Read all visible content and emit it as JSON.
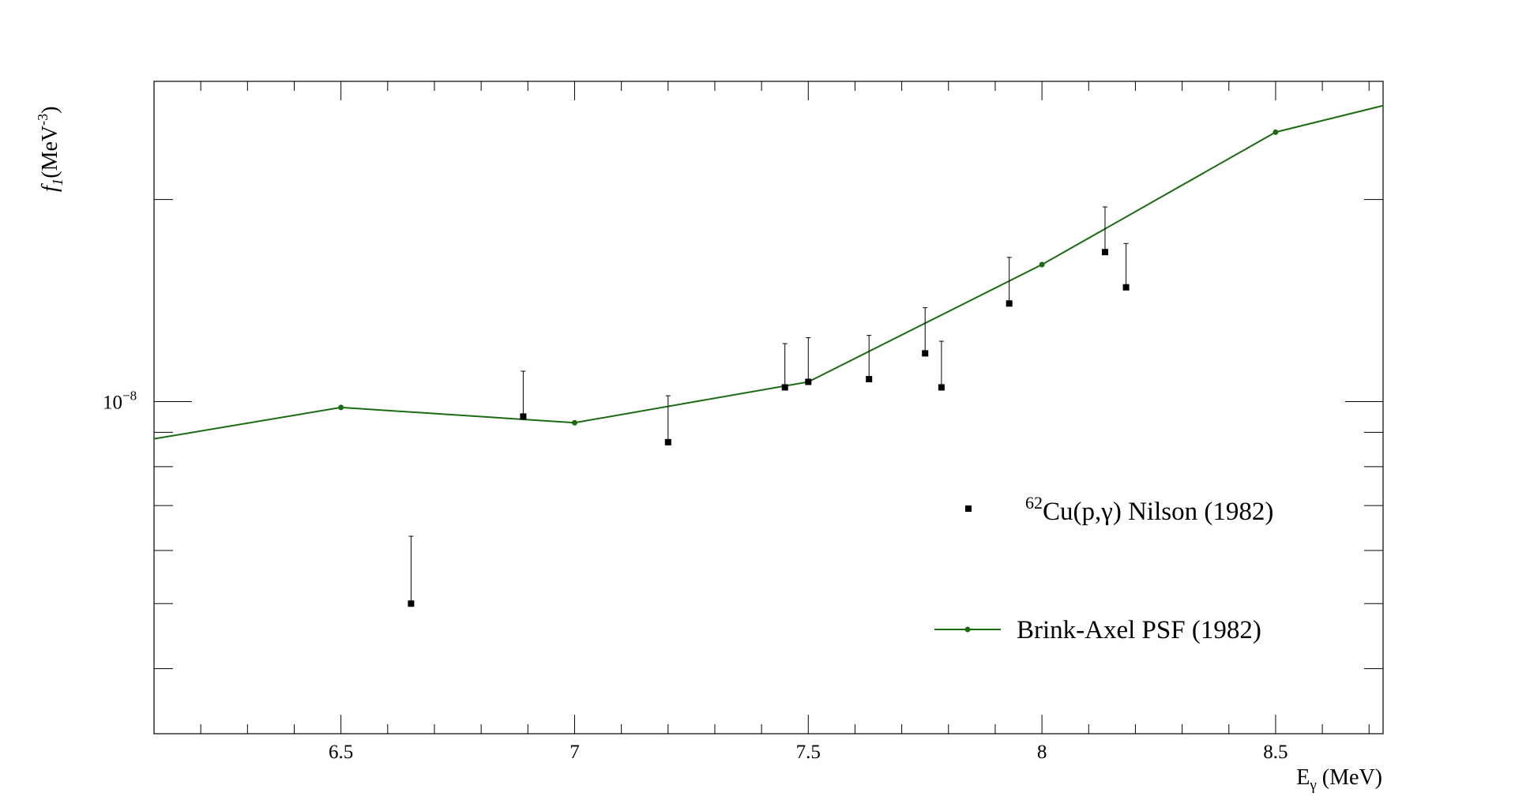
{
  "chart_data": {
    "type": "scatter",
    "x_scale": "linear",
    "y_scale": "log",
    "xlim": [
      6.1,
      8.73
    ],
    "ylim": [
      3.2e-09,
      3e-08
    ],
    "x_ticks": [
      6.5,
      7,
      7.5,
      8,
      8.5
    ],
    "x_tick_labels": [
      "6.5",
      "7",
      "7.5",
      "8",
      "8.5"
    ],
    "y_tick_labels": [
      {
        "value": 1e-08,
        "base": "10",
        "exp": "−8"
      }
    ],
    "xlabel": {
      "main": "E",
      "sub": "γ",
      "tail": " (MeV)"
    },
    "ylabel": {
      "main": "f",
      "sub": "1",
      "tail": "(MeV",
      "sup": "-3",
      "close": ")"
    },
    "series": [
      {
        "name": "Nilson (1982)",
        "legend": {
          "sup": "62",
          "text": "Cu(p,γ) Nilson (1982)"
        },
        "kind": "points",
        "color": "#000000",
        "x": [
          6.65,
          6.89,
          7.2,
          7.45,
          7.5,
          7.63,
          7.75,
          7.785,
          7.93,
          8.135,
          8.18
        ],
        "y": [
          5e-09,
          9.5e-09,
          8.7e-09,
          1.05e-08,
          1.07e-08,
          1.08e-08,
          1.18e-08,
          1.05e-08,
          1.4e-08,
          1.67e-08,
          1.48e-08
        ],
        "y_err_up": [
          1.3e-09,
          1.6e-09,
          1.5e-09,
          1.7e-09,
          1.75e-09,
          1.75e-09,
          2e-09,
          1.8e-09,
          2.4e-09,
          2.8e-09,
          2.4e-09
        ]
      },
      {
        "name": "Brink-Axel PSF (1982)",
        "legend": {
          "text": "Brink-Axel PSF (1982)"
        },
        "kind": "line",
        "color": "#1a6b12",
        "x": [
          6.1,
          6.5,
          7.0,
          7.5,
          8.0,
          8.5,
          8.73
        ],
        "y": [
          8.8e-09,
          9.8e-09,
          9.3e-09,
          1.07e-08,
          1.6e-08,
          2.52e-08,
          2.76e-08
        ],
        "marker_x": [
          6.5,
          7.0,
          7.5,
          8.0,
          8.5
        ]
      }
    ]
  }
}
